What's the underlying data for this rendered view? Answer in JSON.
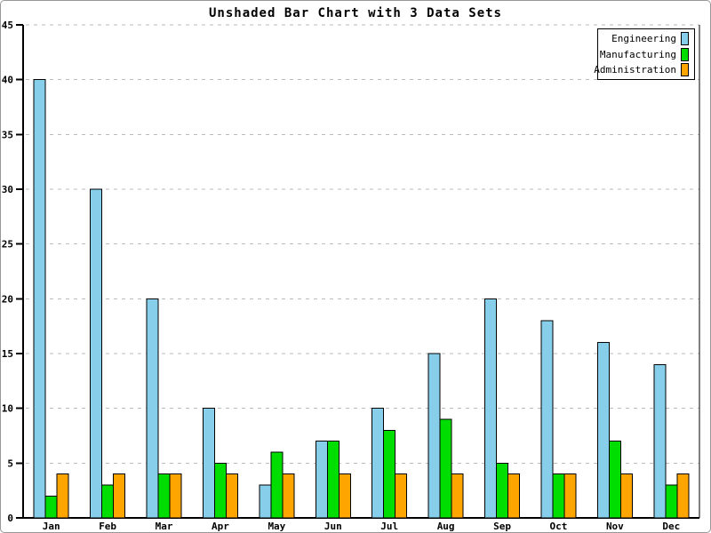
{
  "window": {
    "background": "#ffffff",
    "border_color": "#979797"
  },
  "chart_data": {
    "type": "bar",
    "title": "Unshaded Bar Chart with 3 Data Sets",
    "categories": [
      "Jan",
      "Feb",
      "Mar",
      "Apr",
      "May",
      "Jun",
      "Jul",
      "Aug",
      "Sep",
      "Oct",
      "Nov",
      "Dec"
    ],
    "series": [
      {
        "name": "Engineering",
        "color": "#87CEEB",
        "values": [
          40,
          30,
          20,
          10,
          3,
          7,
          10,
          15,
          20,
          18,
          16,
          14
        ]
      },
      {
        "name": "Manufacturing",
        "color": "#00DD00",
        "values": [
          2,
          3,
          4,
          5,
          6,
          7,
          8,
          9,
          5,
          4,
          7,
          3
        ]
      },
      {
        "name": "Administration",
        "color": "#FFA500",
        "values": [
          4,
          4,
          4,
          4,
          4,
          4,
          4,
          4,
          4,
          4,
          4,
          4
        ]
      }
    ],
    "xlabel": "",
    "ylabel": "",
    "ylim": [
      0,
      45
    ],
    "yticks": [
      0,
      5,
      10,
      15,
      20,
      25,
      30,
      35,
      40,
      45
    ],
    "ytick_step": 5,
    "grid": "horizontal-dashed",
    "gridline_color": "#bbbbbb",
    "axis_color": "#000000",
    "bar_outline_color": "#000000",
    "legend_position": "top-right",
    "legend_border_color": "#000000"
  }
}
